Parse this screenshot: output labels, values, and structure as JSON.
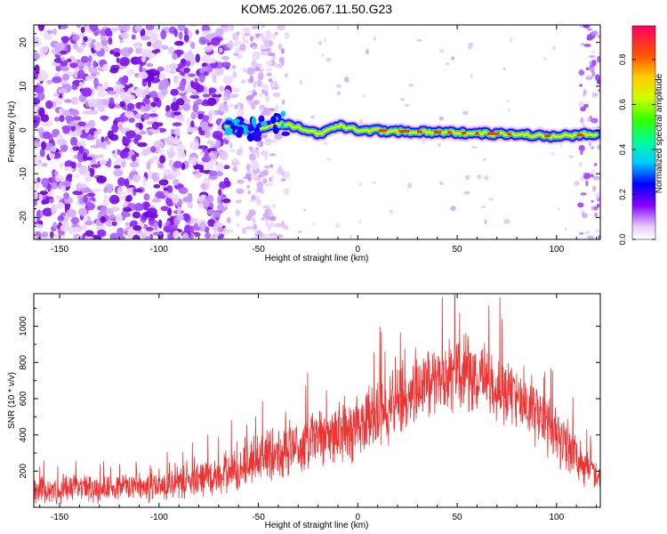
{
  "title": "KOM5.2026.067.11.50.G23",
  "chart_data": [
    {
      "type": "heatmap",
      "xlabel": "Height of straight line (km)",
      "ylabel": "Frequency (Hz)",
      "xlim": [
        -163,
        122
      ],
      "ylim": [
        -25,
        24
      ],
      "xticks": [
        -150,
        -100,
        -50,
        0,
        50,
        100
      ],
      "yticks": [
        -20,
        -10,
        0,
        10,
        20
      ],
      "colorbar": {
        "label": "Normalized spectral amplitude",
        "range": [
          0,
          0.95
        ],
        "ticks": [
          0.0,
          0.2,
          0.4,
          0.6,
          0.8
        ]
      },
      "signal_track": {
        "start_km": -66,
        "end_km": 121,
        "freq_path_km": [
          -66,
          -50,
          -40,
          -30,
          -20,
          -10,
          0,
          20,
          40,
          60,
          80,
          100,
          121
        ],
        "freq_path_hz": [
          0.5,
          0.0,
          1.5,
          0.5,
          -1.0,
          1.0,
          0.0,
          -0.3,
          -0.5,
          -0.8,
          -1.0,
          -1.5,
          -0.8
        ]
      },
      "noise_dense_until_km": -65
    },
    {
      "type": "line",
      "xlabel": "Height of straight line (km)",
      "ylabel": "SNR (10 * v/v)",
      "xlim": [
        -163,
        122
      ],
      "ylim": [
        0,
        1180
      ],
      "xticks": [
        -150,
        -100,
        -50,
        0,
        50,
        100
      ],
      "yticks": [
        200,
        400,
        600,
        800,
        1000
      ],
      "color": "#ee3333",
      "envelope_km": [
        -163,
        -140,
        -120,
        -100,
        -80,
        -60,
        -50,
        -40,
        -20,
        0,
        20,
        40,
        50,
        60,
        80,
        100,
        110,
        122
      ],
      "envelope_mean": [
        90,
        105,
        110,
        120,
        150,
        200,
        280,
        300,
        380,
        450,
        580,
        720,
        740,
        720,
        620,
        420,
        280,
        150
      ],
      "envelope_spread": [
        90,
        90,
        95,
        100,
        110,
        140,
        180,
        190,
        200,
        220,
        230,
        250,
        260,
        250,
        230,
        200,
        160,
        100
      ]
    }
  ]
}
